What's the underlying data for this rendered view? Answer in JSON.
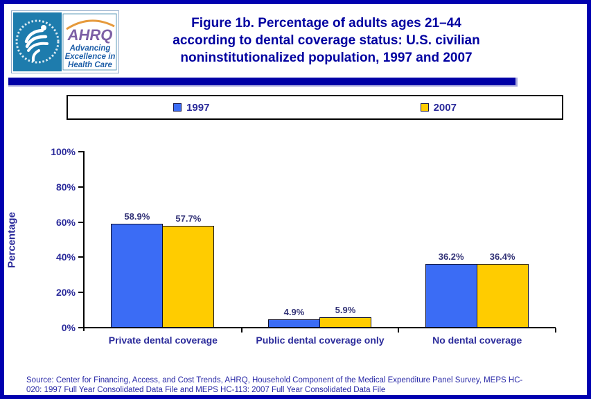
{
  "header": {
    "title_lines": [
      "Figure 1b. Percentage of adults ages 21–44",
      "according to dental coverage status: U.S. civilian",
      "noninstitutionalized population, 1997 and 2007"
    ],
    "logo": {
      "hhs_seal": "Department of Health & Human Services USA seal",
      "ahrq_acronym": "AHRQ",
      "ahrq_tagline_lines": [
        "Advancing",
        "Excellence in",
        "Health Care"
      ]
    }
  },
  "legend": {
    "items": [
      {
        "label": "1997",
        "color": "#3B6CF5"
      },
      {
        "label": "2007",
        "color": "#FFCC00"
      }
    ]
  },
  "chart_data": {
    "type": "bar",
    "title": "Figure 1b. Percentage of adults ages 21–44 according to dental coverage status: U.S. civilian noninstitutionalized population, 1997 and 2007",
    "categories": [
      "Private dental coverage",
      "Public dental coverage only",
      "No dental coverage"
    ],
    "series": [
      {
        "name": "1997",
        "color": "#3B6CF5",
        "values": [
          58.9,
          4.9,
          36.2
        ]
      },
      {
        "name": "2007",
        "color": "#FFCC00",
        "values": [
          57.7,
          5.9,
          36.4
        ]
      }
    ],
    "xlabel": "",
    "ylabel": "Percentage",
    "ylim": [
      0,
      100
    ],
    "ytick_labels": [
      "0%",
      "20%",
      "40%",
      "60%",
      "80%",
      "100%"
    ],
    "value_label_suffix": "%",
    "grid": false,
    "legend_position": "top"
  },
  "source": {
    "lines": [
      "Source: Center for Financing, Access, and Cost Trends, AHRQ, Household Component of the Medical Expenditure Panel Survey, MEPS HC-",
      "020: 1997 Full Year Consolidated Data File and MEPS HC-113: 2007 Full Year Consolidated Data File"
    ]
  },
  "colors": {
    "frame_border": "#0000B0",
    "divider": "#0000A6",
    "title_text": "#0000A0",
    "axis_text": "#2B2B9B",
    "value_label_text": "#333377",
    "source_text": "#2626A6",
    "hhs_teal": "#1E7CAD",
    "ahrq_purple": "#7C5FA5",
    "ahrq_tagline_blue": "#1E5FA8",
    "arc_orange": "#E69A3C"
  }
}
